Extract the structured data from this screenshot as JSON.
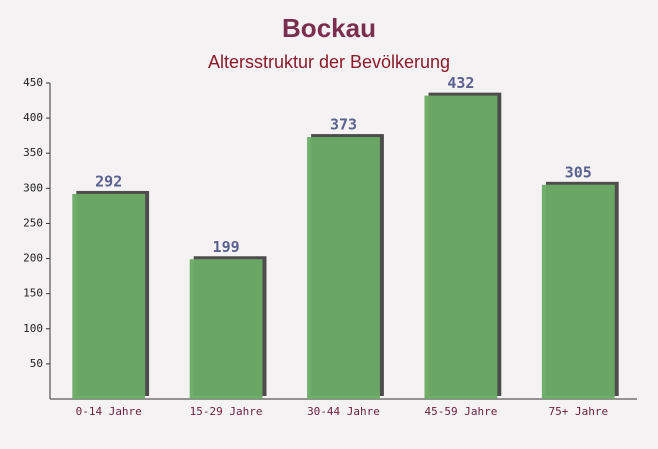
{
  "chart_data": {
    "type": "bar",
    "title": "Bockau",
    "subtitle": "Altersstruktur der Bevölkerung",
    "categories": [
      "0-14 Jahre",
      "15-29 Jahre",
      "30-44 Jahre",
      "45-59 Jahre",
      "75+ Jahre"
    ],
    "values": [
      292,
      199,
      373,
      432,
      305
    ],
    "color": "#6aa964",
    "ylim": [
      0,
      450
    ],
    "yticks": [
      50,
      100,
      150,
      200,
      250,
      300,
      350,
      400,
      450
    ],
    "grid": false
  }
}
